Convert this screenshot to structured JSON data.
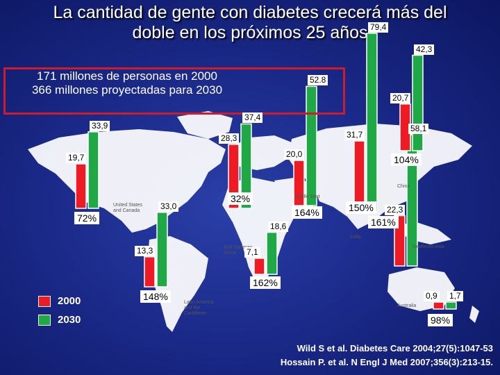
{
  "title": {
    "line1": "La cantidad de gente con diabetes crecerá más del",
    "line2": "doble en los próximos 25 años"
  },
  "callout": {
    "line1": "171 millones de personas en 2000",
    "line2": "366 millones proyectadas para 2030"
  },
  "map_labels": [
    "United States and Canada",
    "Latin America and the Caribbean",
    "Sub-Saharan Africa",
    "Middle East",
    "China",
    "India",
    "Southeast Asia",
    "Australia"
  ],
  "legend": {
    "y2000": "2000",
    "y2030": "2030"
  },
  "colors": {
    "y2000": "#ee1b24",
    "y2030": "#21a846",
    "callout_border": "#d11a2a"
  },
  "references": {
    "line1": "Wild S et al. Diabetes Care 2004;27(5):1047-53",
    "line2": "Hossain P. et al. N Engl J Med 2007;356(3):213-15."
  },
  "chart_data": {
    "type": "bar",
    "unit": "millones",
    "series_names": [
      "2000",
      "2030"
    ],
    "regions": [
      {
        "values": [
          19.7,
          33.9
        ],
        "change": "72%"
      },
      {
        "values": [
          13.3,
          33.0
        ],
        "change": "148%"
      },
      {
        "values": [
          28.3,
          37.4
        ],
        "change": "32%"
      },
      {
        "values": [
          7.1,
          18.6
        ],
        "change": "162%"
      },
      {
        "values": [
          20.0,
          52.8
        ],
        "change": "164%"
      },
      {
        "values": [
          31.7,
          79.4
        ],
        "change": "150%"
      },
      {
        "values": [
          22.3,
          58.1
        ],
        "change": "161%"
      },
      {
        "values": [
          20.7,
          42.3
        ],
        "change": "104%"
      },
      {
        "values": [
          0.9,
          1.7
        ],
        "change": "98%"
      }
    ],
    "value_labels": [
      "19,7",
      "33,9",
      "13,3",
      "33,0",
      "28,3",
      "37,4",
      "7,1",
      "18,6",
      "20,0",
      "52.8",
      "31,7",
      "79,4",
      "22,3",
      "58,1",
      "20,7",
      "42,3",
      "0,9",
      "1,7"
    ]
  }
}
